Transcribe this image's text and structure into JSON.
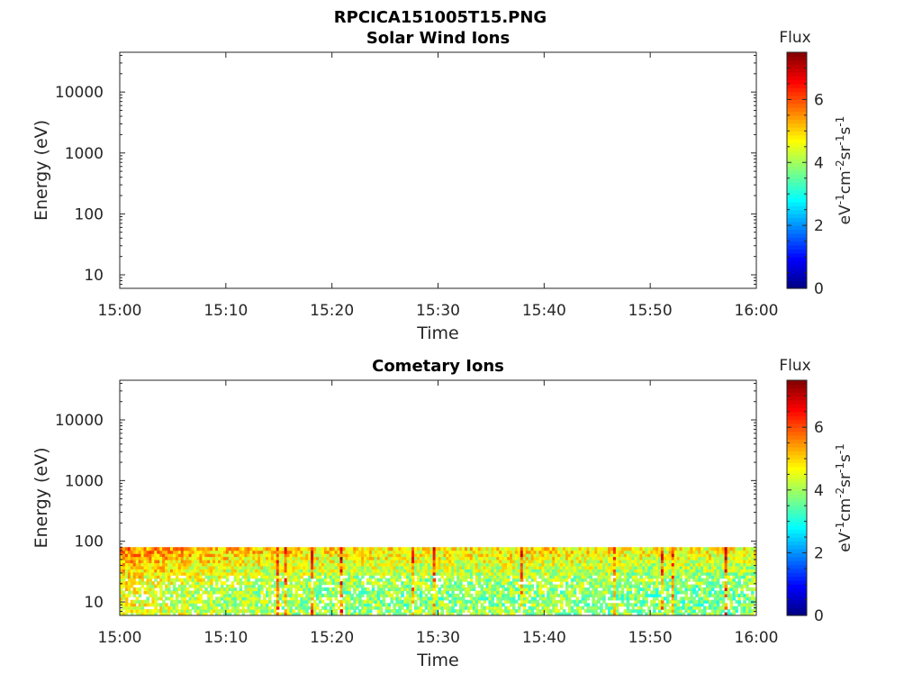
{
  "figure_title": "RPCICA151005T15.PNG",
  "chart_data": [
    {
      "type": "heatmap",
      "title": "Solar Wind Ions",
      "xlabel": "Time",
      "ylabel": "Energy (eV)",
      "x_ticks": [
        "15:00",
        "15:10",
        "15:20",
        "15:30",
        "15:40",
        "15:50",
        "16:00"
      ],
      "x_range": [
        "15:00",
        "16:00"
      ],
      "y_scale": "log",
      "y_ticks": [
        "10",
        "100",
        "1000",
        "10000"
      ],
      "ylim": [
        6,
        45000
      ],
      "colorbar": {
        "label": "Flux",
        "unit": "eV-1cm-2sr-1s-1",
        "ticks": [
          "0",
          "2",
          "4",
          "6"
        ],
        "range": [
          0,
          7.5
        ],
        "colormap": "jet"
      },
      "data": "no data (empty panel)",
      "grid": false
    },
    {
      "type": "heatmap",
      "title": "Cometary Ions",
      "xlabel": "Time",
      "ylabel": "Energy (eV)",
      "x_ticks": [
        "15:00",
        "15:10",
        "15:20",
        "15:30",
        "15:40",
        "15:50",
        "16:00"
      ],
      "x_range": [
        "15:00",
        "16:00"
      ],
      "y_scale": "log",
      "y_ticks": [
        "10",
        "100",
        "1000",
        "10000"
      ],
      "ylim": [
        6,
        45000
      ],
      "colorbar": {
        "label": "Flux",
        "unit": "eV-1cm-2sr-1s-1",
        "ticks": [
          "0",
          "2",
          "4",
          "6"
        ],
        "range": [
          0,
          7.5
        ],
        "colormap": "jet"
      },
      "energy_band_eV": [
        6,
        80
      ],
      "flux_by_energy": [
        {
          "energy_eV": 70,
          "mean_flux": 5.0
        },
        {
          "energy_eV": 45,
          "mean_flux": 4.6
        },
        {
          "energy_eV": 25,
          "mean_flux": 4.2
        },
        {
          "energy_eV": 12,
          "mean_flux": 3.9
        },
        {
          "energy_eV": 7,
          "mean_flux": 4.1
        }
      ],
      "flux_by_time": [
        {
          "time": "15:00",
          "mean_flux": 5.0
        },
        {
          "time": "15:10",
          "mean_flux": 4.5
        },
        {
          "time": "15:20",
          "mean_flux": 4.3
        },
        {
          "time": "15:30",
          "mean_flux": 4.2
        },
        {
          "time": "15:40",
          "mean_flux": 4.3
        },
        {
          "time": "15:50",
          "mean_flux": 4.1
        }
      ],
      "grid": false
    }
  ]
}
